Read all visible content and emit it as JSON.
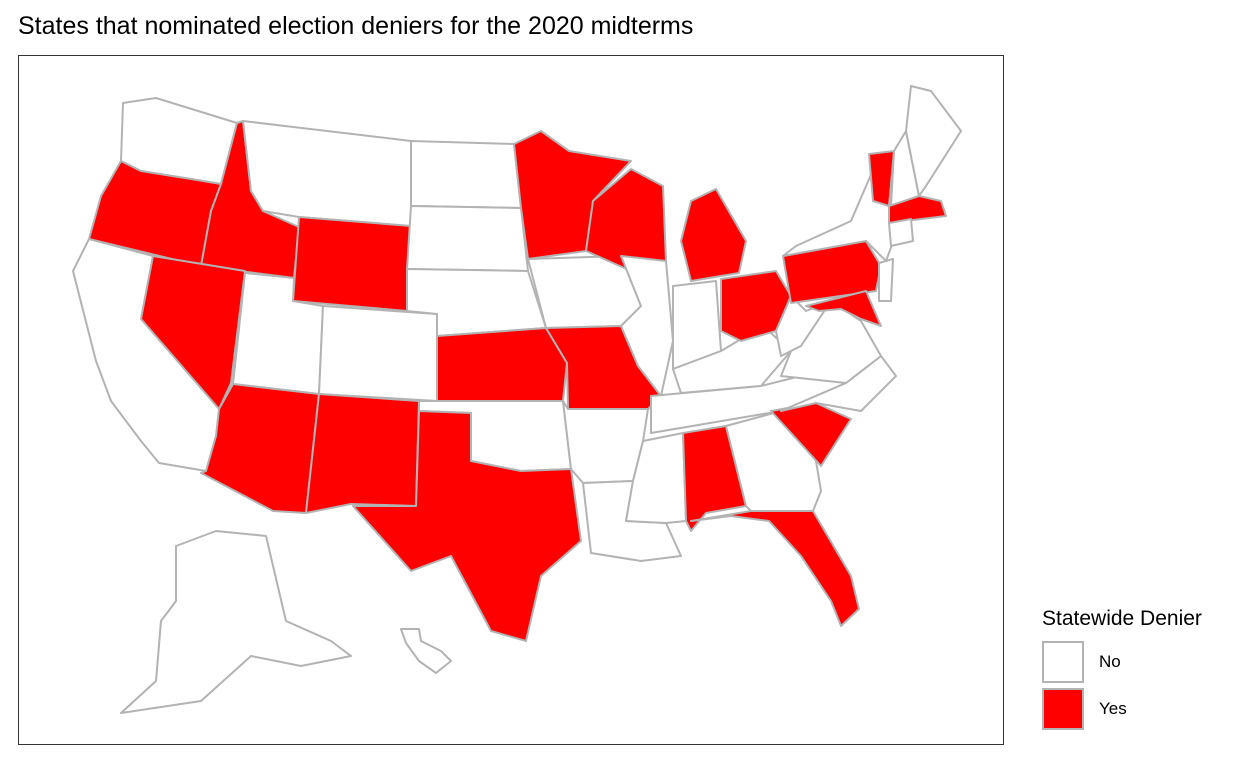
{
  "title": "States that nominated election deniers for the 2020 midterms",
  "legend": {
    "title": "Statewide Denier",
    "items": [
      {
        "label": "No",
        "color": "#ffffff"
      },
      {
        "label": "Yes",
        "color": "#ff0000"
      }
    ]
  },
  "colors": {
    "no": "#ffffff",
    "yes": "#ff0000",
    "border": "#b3b3b3"
  },
  "states": [
    {
      "name": "WA",
      "denier": "No"
    },
    {
      "name": "OR",
      "denier": "Yes"
    },
    {
      "name": "CA",
      "denier": "No"
    },
    {
      "name": "ID",
      "denier": "Yes"
    },
    {
      "name": "NV",
      "denier": "Yes"
    },
    {
      "name": "MT",
      "denier": "No"
    },
    {
      "name": "WY",
      "denier": "Yes"
    },
    {
      "name": "UT",
      "denier": "No"
    },
    {
      "name": "AZ",
      "denier": "Yes"
    },
    {
      "name": "CO",
      "denier": "No"
    },
    {
      "name": "NM",
      "denier": "Yes"
    },
    {
      "name": "ND",
      "denier": "No"
    },
    {
      "name": "SD",
      "denier": "No"
    },
    {
      "name": "NE",
      "denier": "No"
    },
    {
      "name": "KS",
      "denier": "Yes"
    },
    {
      "name": "OK",
      "denier": "No"
    },
    {
      "name": "TX",
      "denier": "Yes"
    },
    {
      "name": "MN",
      "denier": "Yes"
    },
    {
      "name": "IA",
      "denier": "No"
    },
    {
      "name": "MO",
      "denier": "Yes"
    },
    {
      "name": "AR",
      "denier": "No"
    },
    {
      "name": "LA",
      "denier": "No"
    },
    {
      "name": "WI",
      "denier": "Yes"
    },
    {
      "name": "IL",
      "denier": "No"
    },
    {
      "name": "MS",
      "denier": "No"
    },
    {
      "name": "MI",
      "denier": "Yes"
    },
    {
      "name": "IN",
      "denier": "No"
    },
    {
      "name": "KY",
      "denier": "No"
    },
    {
      "name": "TN",
      "denier": "No"
    },
    {
      "name": "AL",
      "denier": "Yes"
    },
    {
      "name": "GA",
      "denier": "No"
    },
    {
      "name": "FL",
      "denier": "Yes"
    },
    {
      "name": "SC",
      "denier": "Yes"
    },
    {
      "name": "NC",
      "denier": "No"
    },
    {
      "name": "OH",
      "denier": "Yes"
    },
    {
      "name": "WV",
      "denier": "No"
    },
    {
      "name": "VA",
      "denier": "No"
    },
    {
      "name": "PA",
      "denier": "Yes"
    },
    {
      "name": "MD",
      "denier": "Yes"
    },
    {
      "name": "NY",
      "denier": "No"
    },
    {
      "name": "VT",
      "denier": "Yes"
    },
    {
      "name": "NH",
      "denier": "No"
    },
    {
      "name": "ME",
      "denier": "No"
    },
    {
      "name": "MA",
      "denier": "Yes"
    },
    {
      "name": "CT",
      "denier": "No"
    },
    {
      "name": "NJ",
      "denier": "No"
    },
    {
      "name": "AK",
      "denier": "No"
    },
    {
      "name": "HI",
      "denier": "No"
    }
  ]
}
